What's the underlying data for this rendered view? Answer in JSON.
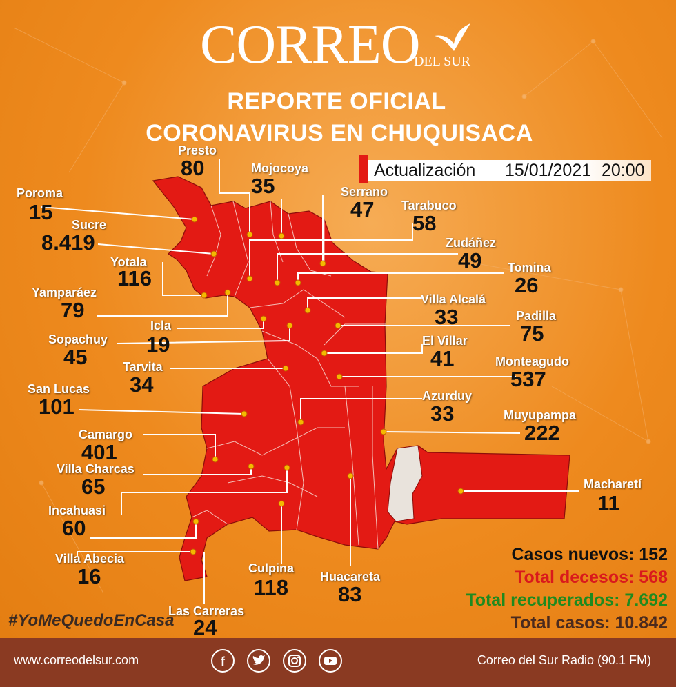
{
  "logo": {
    "word": "CORREO",
    "sub": "DEL SUR"
  },
  "title": {
    "line1": "REPORTE OFICIAL",
    "line2": "CORONAVIRUS EN CHUQUISACA"
  },
  "update": {
    "label": "Actualización",
    "date": "15/01/2021",
    "time": "20:00"
  },
  "municipalities": [
    {
      "name": "Presto",
      "value": "80"
    },
    {
      "name": "Mojocoya",
      "value": "35"
    },
    {
      "name": "Serrano",
      "value": "47"
    },
    {
      "name": "Poroma",
      "value": "15"
    },
    {
      "name": "Sucre",
      "value": "8.419"
    },
    {
      "name": "Tarabuco",
      "value": "58"
    },
    {
      "name": "Zudáñez",
      "value": "49"
    },
    {
      "name": "Yotala",
      "value": "116"
    },
    {
      "name": "Tomina",
      "value": "26"
    },
    {
      "name": "Yamparáez",
      "value": "79"
    },
    {
      "name": "Villa Alcalá",
      "value": "33"
    },
    {
      "name": "Padilla",
      "value": "75"
    },
    {
      "name": "Icla",
      "value": "19"
    },
    {
      "name": "Sopachuy",
      "value": "45"
    },
    {
      "name": "El Villar",
      "value": "41"
    },
    {
      "name": "Monteagudo",
      "value": "537"
    },
    {
      "name": "Tarvita",
      "value": "34"
    },
    {
      "name": "San Lucas",
      "value": "101"
    },
    {
      "name": "Azurduy",
      "value": "33"
    },
    {
      "name": "Muyupampa",
      "value": "222"
    },
    {
      "name": "Camargo",
      "value": "401"
    },
    {
      "name": "Villa Charcas",
      "value": "65"
    },
    {
      "name": "Macharetí",
      "value": "11"
    },
    {
      "name": "Incahuasi",
      "value": "60"
    },
    {
      "name": "Villa Abecia",
      "value": "16"
    },
    {
      "name": "Culpina",
      "value": "118"
    },
    {
      "name": "Huacareta",
      "value": "83"
    },
    {
      "name": "Las Carreras",
      "value": "24"
    }
  ],
  "totals": {
    "new_cases": "Casos nuevos: 152",
    "deaths": "Total decesos: 568",
    "recovered": "Total recuperados: 7.692",
    "cases": "Total casos: 10.842"
  },
  "hashtag": "#YoMeQuedoEnCasa",
  "footer": {
    "website": "www.correodelsur.com",
    "radio": "Correo del Sur Radio (90.1 FM)"
  },
  "social_icons": [
    "facebook-icon",
    "twitter-icon",
    "instagram-icon",
    "youtube-icon"
  ],
  "colors": {
    "background": "#ee8a1e",
    "map": "#e31a14",
    "footer": "#8a3a22",
    "new_cases": "#111111",
    "deaths": "#d9191c",
    "recovered": "#1f8a1f",
    "cases": "#4a2a1e"
  }
}
